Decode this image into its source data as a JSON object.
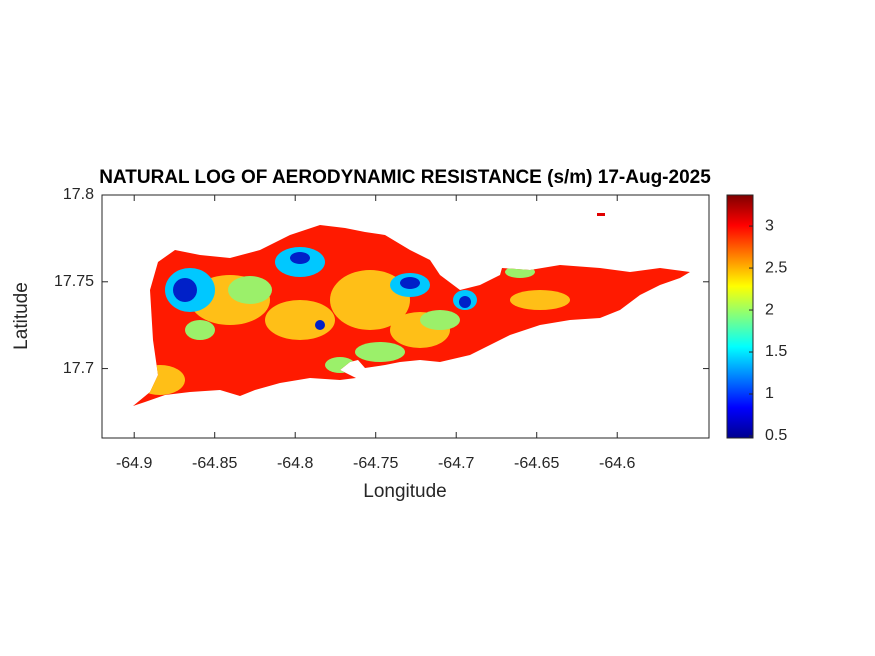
{
  "chart_data": {
    "type": "map",
    "title": "NATURAL LOG OF AERODYNAMIC RESISTANCE (s/m) 17-Aug-2025",
    "x_label": "Longitude",
    "y_label": "Latitude",
    "xlim": [
      -64.92,
      -64.543
    ],
    "xticks": [
      -64.9,
      -64.85,
      -64.8,
      -64.75,
      -64.7,
      -64.65,
      -64.6
    ],
    "ylim": [
      17.66,
      17.8
    ],
    "yticks": [
      17.7,
      17.75,
      17.8
    ],
    "colorbar": {
      "lim": [
        0.476,
        3.37
      ],
      "ticks": [
        0.5,
        1,
        1.5,
        2,
        2.5,
        3
      ],
      "colormap": [
        "#00008f",
        "#0000ff",
        "#0080ff",
        "#00ffff",
        "#80ff80",
        "#ffff00",
        "#ff8000",
        "#ff0000",
        "#800000"
      ]
    }
  }
}
